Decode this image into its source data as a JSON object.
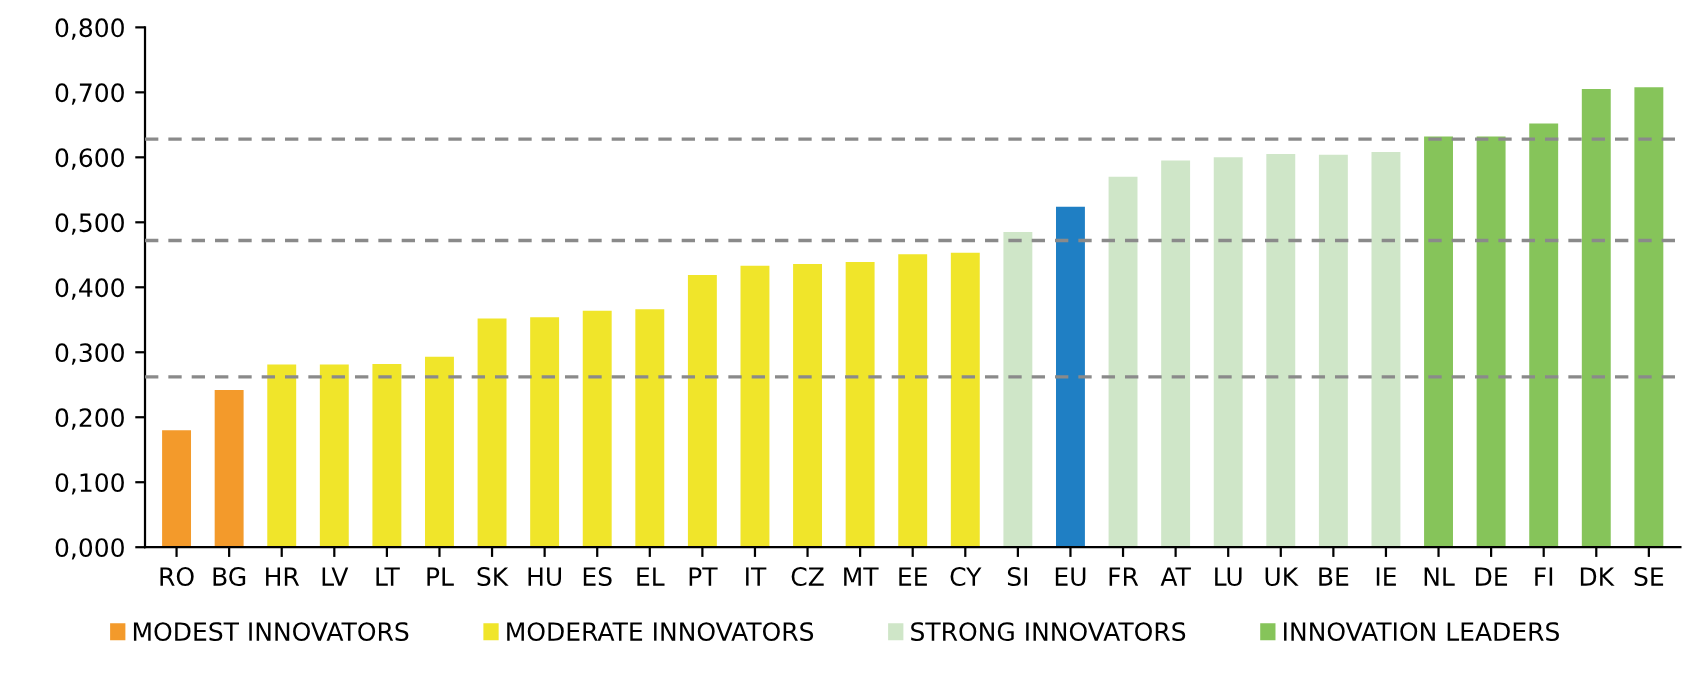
{
  "chart_data": {
    "type": "bar",
    "categories": [
      "RO",
      "BG",
      "HR",
      "LV",
      "LT",
      "PL",
      "SK",
      "HU",
      "ES",
      "EL",
      "PT",
      "IT",
      "CZ",
      "MT",
      "EE",
      "CY",
      "SI",
      "EU",
      "FR",
      "AT",
      "LU",
      "UK",
      "BE",
      "IE",
      "NL",
      "DE",
      "FI",
      "DK",
      "SE"
    ],
    "series": [
      {
        "name": "MODEST INNOVATORS",
        "color": "#f39a2b",
        "values": [
          0.18,
          0.242,
          null,
          null,
          null,
          null,
          null,
          null,
          null,
          null,
          null,
          null,
          null,
          null,
          null,
          null,
          null,
          null,
          null,
          null,
          null,
          null,
          null,
          null,
          null,
          null,
          null,
          null,
          null
        ]
      },
      {
        "name": "MODERATE INNOVATORS",
        "color": "#f0e52a",
        "values": [
          null,
          null,
          0.281,
          0.281,
          0.282,
          0.293,
          0.352,
          0.354,
          0.364,
          0.366,
          0.419,
          0.433,
          0.436,
          0.439,
          0.451,
          0.453,
          null,
          null,
          null,
          null,
          null,
          null,
          null,
          null,
          null,
          null,
          null,
          null,
          null
        ]
      },
      {
        "name": "STRONG INNOVATORS",
        "color": "#cfe6c8",
        "values": [
          null,
          null,
          null,
          null,
          null,
          null,
          null,
          null,
          null,
          null,
          null,
          null,
          null,
          null,
          null,
          null,
          0.485,
          null,
          0.57,
          0.595,
          0.6,
          0.605,
          0.604,
          0.608,
          null,
          null,
          null,
          null,
          null
        ]
      },
      {
        "name": "INNOVATION LEADERS",
        "color": "#86c45a",
        "values": [
          null,
          null,
          null,
          null,
          null,
          null,
          null,
          null,
          null,
          null,
          null,
          null,
          null,
          null,
          null,
          null,
          null,
          null,
          null,
          null,
          null,
          null,
          null,
          null,
          0.632,
          0.632,
          0.652,
          0.705,
          0.708
        ]
      },
      {
        "color": "#1f7fc4",
        "values": [
          null,
          null,
          null,
          null,
          null,
          null,
          null,
          null,
          null,
          null,
          null,
          null,
          null,
          null,
          null,
          null,
          null,
          0.524,
          null,
          null,
          null,
          null,
          null,
          null,
          null,
          null,
          null,
          null,
          null
        ]
      }
    ],
    "ylim": [
      0,
      0.8
    ],
    "yticks": [
      {
        "value": 0,
        "label": "0,000"
      },
      {
        "value": 0.1,
        "label": "0,100"
      },
      {
        "value": 0.2,
        "label": "0,200"
      },
      {
        "value": 0.3,
        "label": "0,300"
      },
      {
        "value": 0.4,
        "label": "0,400"
      },
      {
        "value": 0.5,
        "label": "0,500"
      },
      {
        "value": 0.6,
        "label": "0,600"
      },
      {
        "value": 0.7,
        "label": "0,700"
      },
      {
        "value": 0.8,
        "label": "0,800"
      }
    ],
    "ref_lines": [
      {
        "axis": "y",
        "value": 0.628,
        "color": "#8a8a8a",
        "line_style": "dashed"
      },
      {
        "axis": "y",
        "value": 0.472,
        "color": "#8a8a8a",
        "line_style": "dashed"
      },
      {
        "axis": "y",
        "value": 0.262,
        "color": "#8a8a8a",
        "line_style": "dashed"
      }
    ],
    "legend": "bottom",
    "grid": false
  }
}
